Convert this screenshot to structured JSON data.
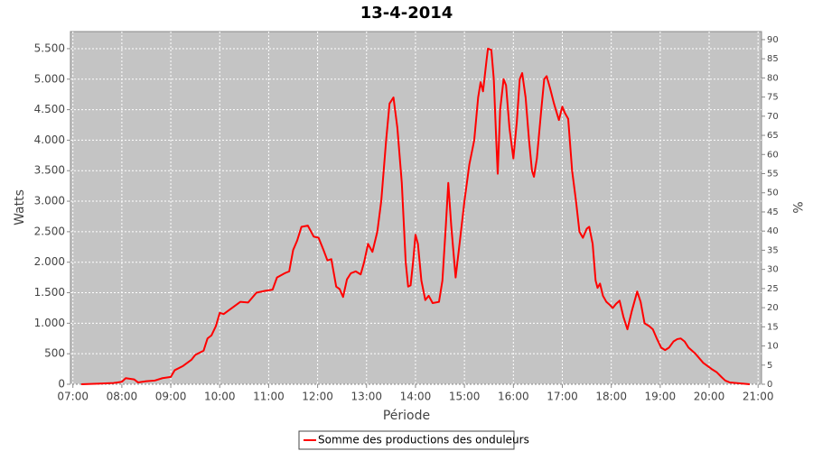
{
  "chart_data": {
    "type": "line",
    "title": "13-4-2014",
    "x_label": "Période",
    "y_label": "Watts",
    "y2_label": "%",
    "grid": true,
    "legend": "bottom",
    "background": "#c4c4c4",
    "xlim": [
      6.95,
      21.07
    ],
    "ylim": [
      0,
      5780
    ],
    "y2lim": [
      0,
      92.1
    ],
    "xticks": [
      {
        "value": 7,
        "label": "07:00"
      },
      {
        "value": 8,
        "label": "08:00"
      },
      {
        "value": 9,
        "label": "09:00"
      },
      {
        "value": 10,
        "label": "10:00"
      },
      {
        "value": 11,
        "label": "11:00"
      },
      {
        "value": 12,
        "label": "12:00"
      },
      {
        "value": 13,
        "label": "13:00"
      },
      {
        "value": 14,
        "label": "14:00"
      },
      {
        "value": 15,
        "label": "15:00"
      },
      {
        "value": 16,
        "label": "16:00"
      },
      {
        "value": 17,
        "label": "17:00"
      },
      {
        "value": 18,
        "label": "18:00"
      },
      {
        "value": 19,
        "label": "19:00"
      },
      {
        "value": 20,
        "label": "20:00"
      },
      {
        "value": 21,
        "label": "21:00"
      }
    ],
    "yticks": [
      0,
      500,
      {
        "value": 1000,
        "label": "1.000"
      },
      {
        "value": 1500,
        "label": "1.500"
      },
      {
        "value": 2000,
        "label": "2.000"
      },
      {
        "value": 2500,
        "label": "2.500"
      },
      {
        "value": 3000,
        "label": "3.000"
      },
      {
        "value": 3500,
        "label": "3.500"
      },
      {
        "value": 4000,
        "label": "4.000"
      },
      {
        "value": 4500,
        "label": "4.500"
      },
      {
        "value": 5000,
        "label": "5.000"
      },
      {
        "value": 5500,
        "label": "5.500"
      }
    ],
    "y2ticks": [
      0,
      5,
      10,
      15,
      20,
      25,
      30,
      35,
      40,
      45,
      50,
      55,
      60,
      65,
      70,
      75,
      80,
      85,
      90
    ],
    "x": [
      7.17,
      7.5,
      7.83,
      8.0,
      8.08,
      8.25,
      8.33,
      8.5,
      8.67,
      8.83,
      9.0,
      9.08,
      9.25,
      9.42,
      9.5,
      9.67,
      9.75,
      9.83,
      9.92,
      10.0,
      10.08,
      10.25,
      10.42,
      10.58,
      10.75,
      10.92,
      11.08,
      11.17,
      11.33,
      11.42,
      11.5,
      11.58,
      11.67,
      11.8,
      11.92,
      12.02,
      12.12,
      12.2,
      12.28,
      12.38,
      12.45,
      12.52,
      12.6,
      12.68,
      12.78,
      12.88,
      12.95,
      13.03,
      13.12,
      13.22,
      13.3,
      13.4,
      13.47,
      13.55,
      13.63,
      13.72,
      13.8,
      13.85,
      13.9,
      13.95,
      14.0,
      14.05,
      14.12,
      14.2,
      14.27,
      14.35,
      14.48,
      14.55,
      14.62,
      14.67,
      14.73,
      14.82,
      14.9,
      15.0,
      15.1,
      15.2,
      15.28,
      15.33,
      15.38,
      15.45,
      15.48,
      15.55,
      15.6,
      15.65,
      15.68,
      15.73,
      15.8,
      15.85,
      15.92,
      16.0,
      16.07,
      16.13,
      16.18,
      16.25,
      16.32,
      16.38,
      16.42,
      16.48,
      16.57,
      16.63,
      16.68,
      16.75,
      16.83,
      16.93,
      17.0,
      17.05,
      17.12,
      17.2,
      17.28,
      17.35,
      17.42,
      17.5,
      17.55,
      17.62,
      17.68,
      17.72,
      17.77,
      17.83,
      17.9,
      17.97,
      18.03,
      18.1,
      18.17,
      18.25,
      18.33,
      18.42,
      18.53,
      18.6,
      18.68,
      18.78,
      18.85,
      18.93,
      19.02,
      19.1,
      19.18,
      19.27,
      19.35,
      19.42,
      19.5,
      19.58,
      19.72,
      19.88,
      20.05,
      20.15,
      20.25,
      20.33,
      20.42,
      20.83
    ],
    "series": [
      {
        "name": "Somme des productions des onduleurs",
        "color": "#ff0000",
        "values": [
          0,
          10,
          20,
          40,
          100,
          80,
          30,
          50,
          60,
          100,
          120,
          230,
          300,
          400,
          480,
          550,
          750,
          800,
          950,
          1170,
          1150,
          1250,
          1350,
          1340,
          1500,
          1530,
          1550,
          1750,
          1820,
          1850,
          2200,
          2350,
          2580,
          2600,
          2420,
          2400,
          2200,
          2030,
          2050,
          1600,
          1560,
          1430,
          1720,
          1820,
          1850,
          1800,
          2000,
          2300,
          2170,
          2500,
          3000,
          4000,
          4600,
          4700,
          4200,
          3300,
          2000,
          1600,
          1620,
          2000,
          2450,
          2300,
          1700,
          1380,
          1450,
          1330,
          1350,
          1700,
          2600,
          3300,
          2600,
          1750,
          2300,
          3000,
          3600,
          4000,
          4700,
          4950,
          4800,
          5300,
          5500,
          5480,
          5000,
          4000,
          3450,
          4500,
          5000,
          4900,
          4200,
          3700,
          4300,
          5000,
          5100,
          4700,
          4000,
          3500,
          3400,
          3700,
          4500,
          5000,
          5050,
          4850,
          4600,
          4330,
          4550,
          4450,
          4350,
          3500,
          3000,
          2500,
          2400,
          2550,
          2580,
          2300,
          1700,
          1580,
          1650,
          1450,
          1350,
          1300,
          1250,
          1320,
          1370,
          1100,
          900,
          1200,
          1520,
          1350,
          1000,
          950,
          900,
          750,
          600,
          560,
          600,
          700,
          740,
          750,
          700,
          600,
          500,
          350,
          250,
          200,
          120,
          60,
          30,
          0
        ]
      }
    ]
  }
}
